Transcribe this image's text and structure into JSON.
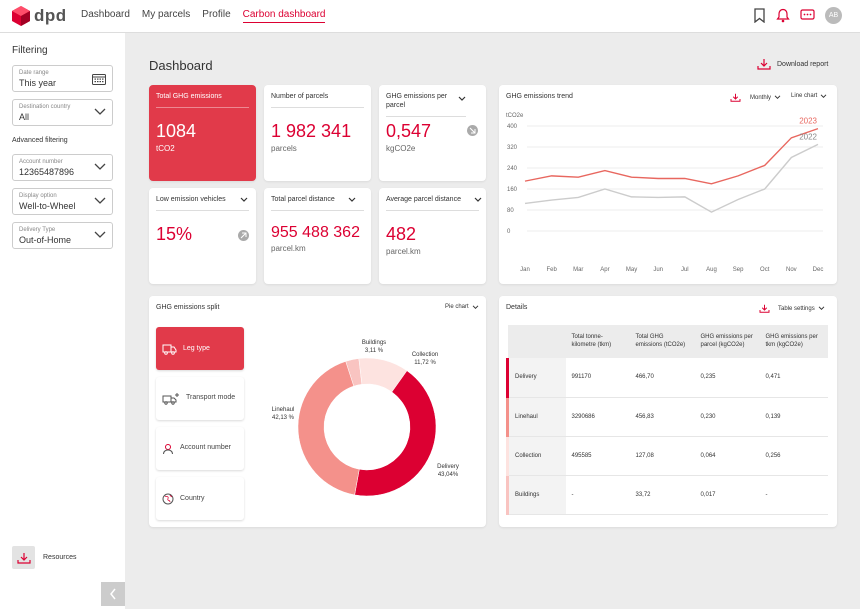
{
  "nav": {
    "brand": "dpd",
    "items": [
      "Dashboard",
      "My parcels",
      "Profile",
      "Carbon dashboard"
    ],
    "user_initials": "AB"
  },
  "sidebar": {
    "title": "Filtering",
    "date_range": {
      "label": "Date range",
      "value": "This year"
    },
    "destination": {
      "label": "Destination country",
      "value": "All"
    },
    "advanced": "Advanced filtering",
    "account": {
      "label": "Account number",
      "value": "12365487896"
    },
    "display": {
      "label": "Display option",
      "value": "Well-to-Wheel"
    },
    "delivery": {
      "label": "Delivery Type",
      "value": "Out-of-Home"
    },
    "resources": "Resources"
  },
  "main": {
    "title": "Dashboard",
    "download": "Download report"
  },
  "kpis": {
    "total_ghg": {
      "title": "Total GHG emissions",
      "value": "1084",
      "unit": "tCO2"
    },
    "parcels": {
      "title": "Number of parcels",
      "value": "1 982 341",
      "unit": "parcels"
    },
    "ghg_per_parcel": {
      "title": "GHG emissions per parcel",
      "value": "0,547",
      "unit": "kgCO2e"
    },
    "low_emission": {
      "title": "Low emission vehicles",
      "value": "15%"
    },
    "total_distance": {
      "title": "Total parcel distance",
      "value": "955 488 362",
      "unit": "parcel.km"
    },
    "avg_distance": {
      "title": "Average parcel distance",
      "value": "482",
      "unit": "parcel.km"
    }
  },
  "trend": {
    "title": "GHG emissions trend",
    "period": "Monthly",
    "chart_type_label": "Line chart"
  },
  "chart_data": [
    {
      "type": "line",
      "title": "GHG emissions trend",
      "ylabel": "tCO2e",
      "x": [
        "Jan",
        "Feb",
        "Mar",
        "Apr",
        "May",
        "Jun",
        "Jul",
        "Aug",
        "Sep",
        "Oct",
        "Nov",
        "Dec"
      ],
      "yticks": [
        0,
        80,
        160,
        240,
        320,
        400
      ],
      "ylim": [
        0,
        400
      ],
      "grid": true,
      "series": [
        {
          "name": "2023",
          "color": "#e8675f",
          "values": [
            190,
            210,
            205,
            230,
            205,
            200,
            200,
            180,
            210,
            250,
            355,
            390
          ]
        },
        {
          "name": "2022",
          "color": "#cccccc",
          "values": [
            105,
            118,
            128,
            160,
            130,
            128,
            130,
            72,
            120,
            160,
            280,
            330
          ]
        }
      ]
    },
    {
      "type": "pie",
      "title": "GHG emissions split",
      "categories": [
        "Buildings",
        "Collection",
        "Delivery",
        "Linehaul"
      ],
      "values": [
        3.11,
        11.72,
        43.04,
        42.13
      ],
      "labels": [
        "3,11 %",
        "11,72 %",
        "43,04%",
        "42,13 %"
      ],
      "colors": [
        "#f9c4c1",
        "#fde3e0",
        "#dc0032",
        "#f4918b"
      ]
    }
  ],
  "split": {
    "title": "GHG emissions split",
    "chart_type_label": "Pie chart",
    "buttons": [
      "Leg type",
      "Transport mode",
      "Account number",
      "Country"
    ]
  },
  "details": {
    "title": "Details",
    "settings": "Table settings",
    "columns": [
      "",
      "Total tonne-kilometre (tkm)",
      "Total GHG emissions (tCO2e)",
      "GHG emissions per parcel (kgCO2e)",
      "GHG emissions per tkm (kgCO2e)"
    ],
    "rows": [
      {
        "label": "Delivery",
        "color": "#dc0032",
        "values": [
          "991170",
          "466,70",
          "0,235",
          "0,471"
        ]
      },
      {
        "label": "Linehaul",
        "color": "#f4918b",
        "values": [
          "3290686",
          "456,83",
          "0,230",
          "0,139"
        ]
      },
      {
        "label": "Collection",
        "color": "#fde3e0",
        "values": [
          "495585",
          "127,08",
          "0,064",
          "0,256"
        ]
      },
      {
        "label": "Buildings",
        "color": "#f9c4c1",
        "values": [
          "-",
          "33,72",
          "0,017",
          "-"
        ]
      }
    ]
  }
}
